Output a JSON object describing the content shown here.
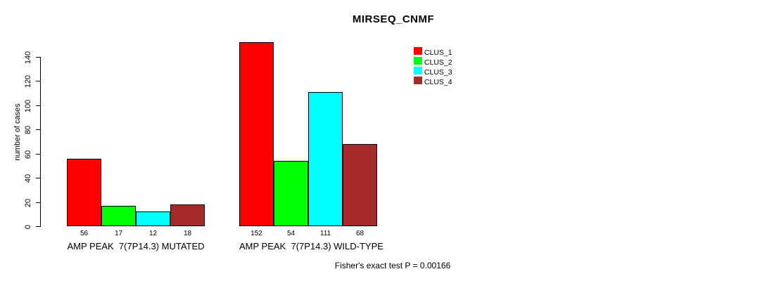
{
  "title": "MIRSEQ_CNMF",
  "chart_data": {
    "type": "bar",
    "title": "MIRSEQ_CNMF",
    "xlabel": "",
    "ylabel": "number of cases",
    "ylim": [
      0,
      152
    ],
    "y_ticks": [
      0,
      20,
      40,
      60,
      80,
      100,
      120,
      140
    ],
    "grid": false,
    "legend_position": "top-right",
    "categories": [
      "AMP PEAK  7(7P14.3) MUTATED",
      "AMP PEAK  7(7P14.3) WILD-TYPE"
    ],
    "series": [
      {
        "name": "CLUS_1",
        "color": "#FF0000",
        "values": [
          56,
          152
        ]
      },
      {
        "name": "CLUS_2",
        "color": "#00FF00",
        "values": [
          17,
          54
        ]
      },
      {
        "name": "CLUS_3",
        "color": "#00FFFF",
        "values": [
          12,
          111
        ]
      },
      {
        "name": "CLUS_4",
        "color": "#A52A2A",
        "values": [
          18,
          68
        ]
      }
    ],
    "bar_value_labels": [
      [
        56,
        17,
        12,
        18
      ],
      [
        152,
        54,
        111,
        68
      ]
    ],
    "footnote": "Fisher's exact test P = 0.00166"
  }
}
